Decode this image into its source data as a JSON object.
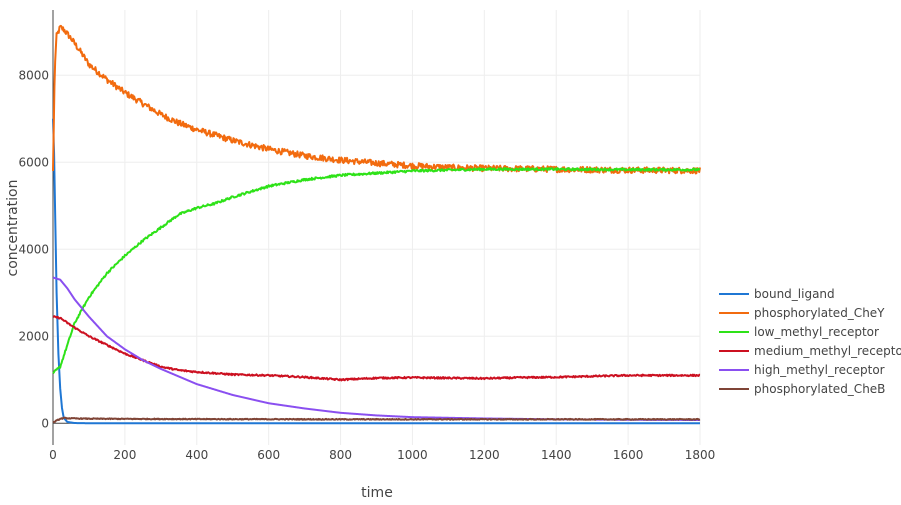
{
  "chart_data": {
    "type": "line",
    "title": "",
    "xlabel": "time",
    "ylabel": "concentration",
    "xlim": [
      0,
      1800
    ],
    "ylim": [
      -500,
      9500
    ],
    "xticks": [
      0,
      200,
      400,
      600,
      800,
      1000,
      1200,
      1400,
      1600,
      1800
    ],
    "yticks": [
      0,
      2000,
      4000,
      6000,
      8000
    ],
    "grid": true,
    "legend_position": "right",
    "series": [
      {
        "name": "bound_ligand",
        "color": "#1f77d4",
        "noisy": false,
        "x": [
          0,
          3,
          6,
          10,
          15,
          20,
          25,
          30,
          40,
          60,
          100,
          200,
          400,
          800,
          1200,
          1800
        ],
        "y": [
          7000,
          6200,
          4800,
          3000,
          1600,
          800,
          350,
          120,
          30,
          5,
          0,
          0,
          0,
          0,
          0,
          0
        ]
      },
      {
        "name": "phosphorylated_CheY",
        "color": "#f26b0f",
        "noisy": true,
        "noise": 70,
        "x": [
          0,
          5,
          10,
          20,
          30,
          50,
          80,
          100,
          150,
          200,
          250,
          300,
          350,
          400,
          500,
          600,
          700,
          800,
          900,
          1000,
          1100,
          1200,
          1400,
          1600,
          1800
        ],
        "y": [
          5800,
          8200,
          8900,
          9100,
          9050,
          8850,
          8500,
          8250,
          7900,
          7600,
          7350,
          7100,
          6900,
          6750,
          6500,
          6300,
          6150,
          6050,
          5980,
          5920,
          5880,
          5860,
          5840,
          5820,
          5810
        ]
      },
      {
        "name": "low_methyl_receptor",
        "color": "#2ee218",
        "noisy": true,
        "noise": 25,
        "x": [
          0,
          20,
          40,
          60,
          80,
          100,
          150,
          200,
          250,
          300,
          350,
          400,
          450,
          500,
          600,
          700,
          800,
          900,
          1000,
          1100,
          1200,
          1400,
          1600,
          1800
        ],
        "y": [
          1150,
          1300,
          1800,
          2300,
          2600,
          2900,
          3450,
          3850,
          4200,
          4500,
          4800,
          4950,
          5050,
          5200,
          5450,
          5600,
          5700,
          5750,
          5800,
          5820,
          5840,
          5840,
          5830,
          5830
        ]
      },
      {
        "name": "medium_methyl_receptor",
        "color": "#cc1020",
        "noisy": true,
        "noise": 18,
        "x": [
          0,
          20,
          50,
          100,
          150,
          200,
          250,
          300,
          350,
          400,
          500,
          600,
          700,
          800,
          900,
          1000,
          1100,
          1200,
          1300,
          1400,
          1500,
          1600,
          1700,
          1800
        ],
        "y": [
          2450,
          2420,
          2250,
          2000,
          1800,
          1600,
          1450,
          1300,
          1220,
          1180,
          1120,
          1100,
          1060,
          1000,
          1040,
          1050,
          1040,
          1030,
          1050,
          1060,
          1080,
          1100,
          1100,
          1100
        ]
      },
      {
        "name": "high_methyl_receptor",
        "color": "#8a4ff0",
        "noisy": false,
        "x": [
          0,
          20,
          40,
          60,
          100,
          150,
          200,
          250,
          300,
          400,
          500,
          600,
          700,
          800,
          900,
          1000,
          1200,
          1400,
          1600,
          1800
        ],
        "y": [
          3350,
          3300,
          3100,
          2850,
          2450,
          2000,
          1700,
          1450,
          1250,
          900,
          650,
          460,
          340,
          240,
          180,
          140,
          110,
          90,
          80,
          75
        ]
      },
      {
        "name": "phosphorylated_CheB",
        "color": "#7f4436",
        "noisy": true,
        "noise": 10,
        "x": [
          0,
          10,
          20,
          30,
          40,
          60,
          100,
          200,
          400,
          800,
          1200,
          1800
        ],
        "y": [
          20,
          60,
          100,
          120,
          115,
          110,
          105,
          100,
          95,
          90,
          90,
          90
        ]
      }
    ]
  }
}
